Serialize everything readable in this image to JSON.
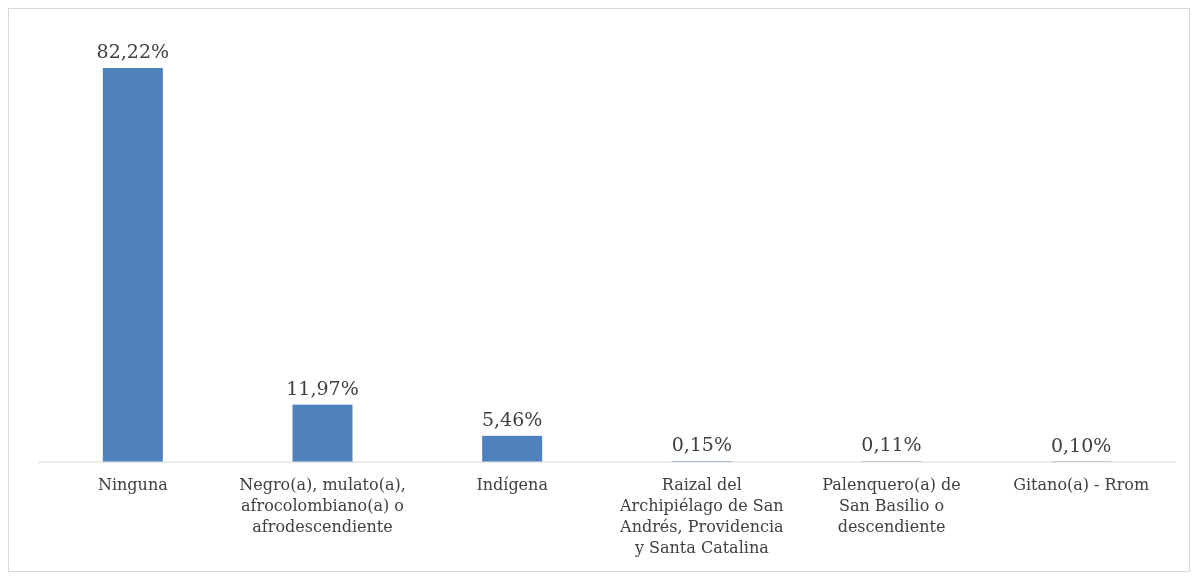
{
  "chart_data": {
    "type": "bar",
    "categories": [
      "Ninguna",
      "Negro(a), mulato(a), afrocolombiano(a) o afrodescendiente",
      "Indígena",
      "Raizal del Archipiélago de San Andrés, Providencia y Santa Catalina",
      "Palenquero(a) de San Basilio o descendiente",
      "Gitano(a) - Rrom"
    ],
    "values": [
      82.22,
      11.97,
      5.46,
      0.15,
      0.11,
      0.1
    ],
    "value_labels": [
      "82,22%",
      "11,97%",
      "5,46%",
      "0,15%",
      "0,11%",
      "0,10%"
    ],
    "color": "#4f81bd"
  }
}
